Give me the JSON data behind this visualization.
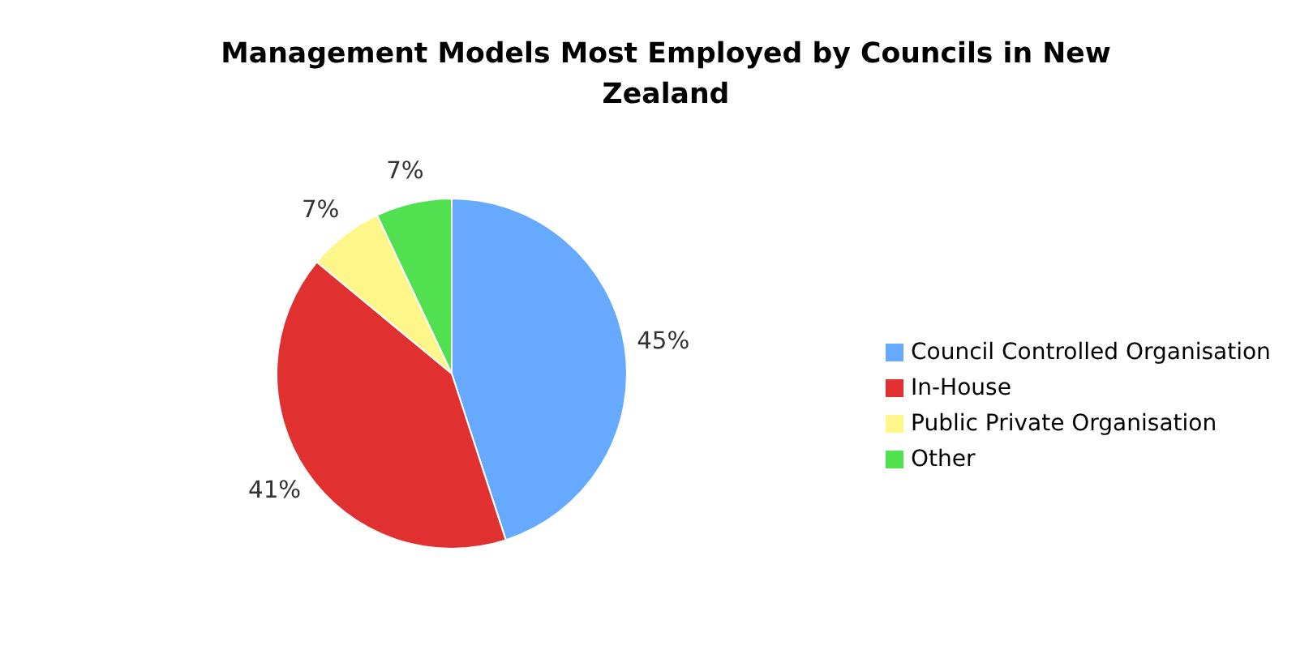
{
  "chart_data": {
    "type": "pie",
    "title": "Management Models Most Employed by Councils in New Zealand",
    "categories": [
      "Council Controlled Organisation",
      "In-House",
      "Public Private Organisation",
      "Other"
    ],
    "values": [
      45,
      41,
      7,
      7
    ],
    "colors": [
      "#66aaff",
      "#e03030",
      "#fff68a",
      "#50e050"
    ],
    "value_labels": [
      "45%",
      "41%",
      "7%",
      "7%"
    ],
    "legend": "right"
  }
}
